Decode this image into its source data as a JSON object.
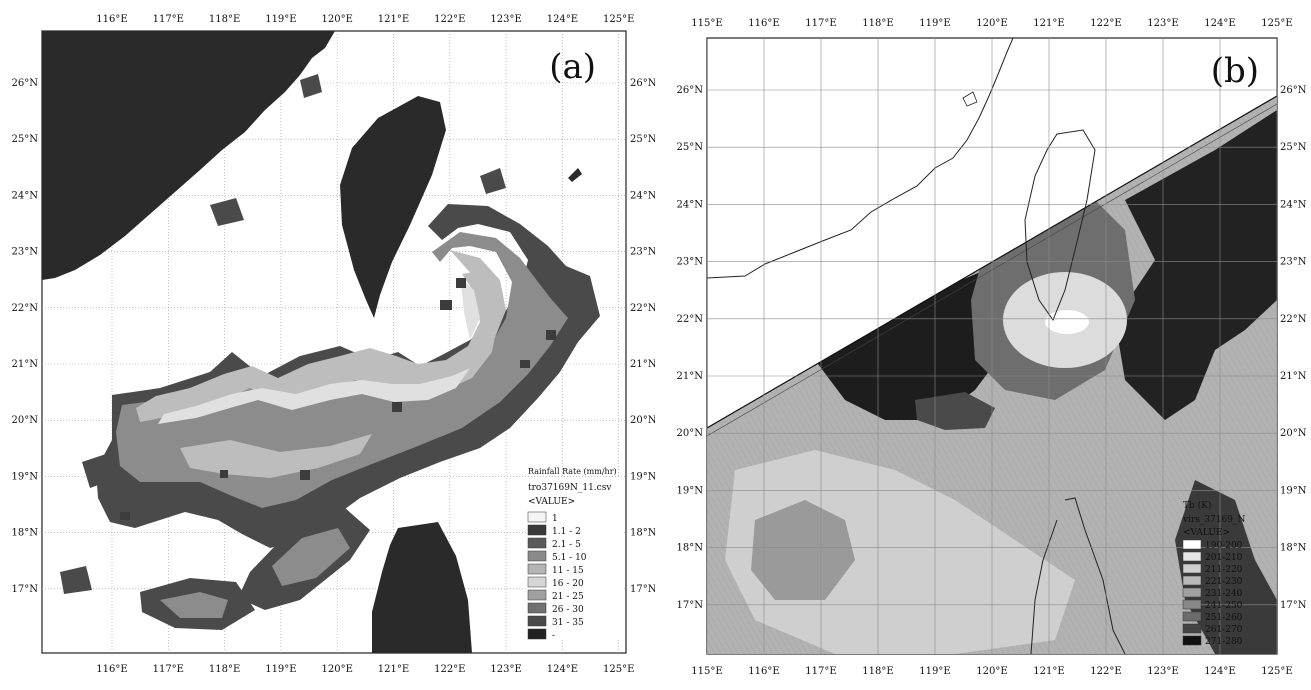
{
  "panel_a": {
    "label": "(a)",
    "top_ticks": [
      "116°E",
      "117°E",
      "118°E",
      "119°E",
      "120°E",
      "121°E",
      "122°E",
      "123°E",
      "124°E",
      "125°E"
    ],
    "bottom_ticks": [
      "116°E",
      "117°E",
      "118°E",
      "119°E",
      "120°E",
      "121°E",
      "122°E",
      "123°E",
      "124°E",
      "125°E"
    ],
    "left_ticks": [
      "26°N",
      "25°N",
      "24°N",
      "23°N",
      "22°N",
      "21°N",
      "20°N",
      "19°N",
      "18°N",
      "17°N"
    ],
    "right_ticks": [
      "26°N",
      "25°N",
      "24°N",
      "23°N",
      "22°N",
      "21°N",
      "20°N",
      "19°N",
      "18°N",
      "17°N"
    ],
    "legend": {
      "title": "Rainfall Rate (mm/hr)",
      "source": "tro37169N_11.csv",
      "value_header": "<VALUE>",
      "classes": [
        {
          "label": "1",
          "color": "#f4f4f4"
        },
        {
          "label": "1.1 - 2",
          "color": "#3a3a3a"
        },
        {
          "label": "2.1 - 5",
          "color": "#5a5a5a"
        },
        {
          "label": "5.1 - 10",
          "color": "#8a8a8a"
        },
        {
          "label": "11 - 15",
          "color": "#b4b4b4"
        },
        {
          "label": "16 - 20",
          "color": "#d6d6d6"
        },
        {
          "label": "21 - 25",
          "color": "#a0a0a0"
        },
        {
          "label": "26 - 30",
          "color": "#707070"
        },
        {
          "label": "31 - 35",
          "color": "#4a4a4a"
        },
        {
          "label": "-",
          "color": "#222222"
        }
      ]
    }
  },
  "panel_b": {
    "label": "(b)",
    "top_ticks": [
      "115°E",
      "116°E",
      "117°E",
      "118°E",
      "119°E",
      "120°E",
      "121°E",
      "122°E",
      "123°E",
      "124°E",
      "125°E"
    ],
    "bottom_ticks": [
      "115°E",
      "116°E",
      "117°E",
      "118°E",
      "119°E",
      "120°E",
      "121°E",
      "122°E",
      "123°E",
      "124°E",
      "125°E"
    ],
    "left_ticks": [
      "26°N",
      "25°N",
      "24°N",
      "23°N",
      "22°N",
      "21°N",
      "20°N",
      "19°N",
      "18°N",
      "17°N"
    ],
    "right_ticks": [
      "26°N",
      "25°N",
      "24°N",
      "23°N",
      "22°N",
      "21°N",
      "20°N",
      "19°N",
      "18°N",
      "17°N"
    ],
    "legend": {
      "title": "Tb (K)",
      "source": "virs_37169_N",
      "value_header": "<VALUE>",
      "classes": [
        {
          "label": "190-200",
          "color": "#ffffff"
        },
        {
          "label": "201-210",
          "color": "#e6e6e6"
        },
        {
          "label": "211-220",
          "color": "#cfcfcf"
        },
        {
          "label": "221-230",
          "color": "#b8b8b8"
        },
        {
          "label": "231-240",
          "color": "#a0a0a0"
        },
        {
          "label": "241-250",
          "color": "#888888"
        },
        {
          "label": "251-260",
          "color": "#6c6c6c"
        },
        {
          "label": "261-270",
          "color": "#444444"
        },
        {
          "label": "271-280",
          "color": "#111111"
        }
      ]
    }
  }
}
